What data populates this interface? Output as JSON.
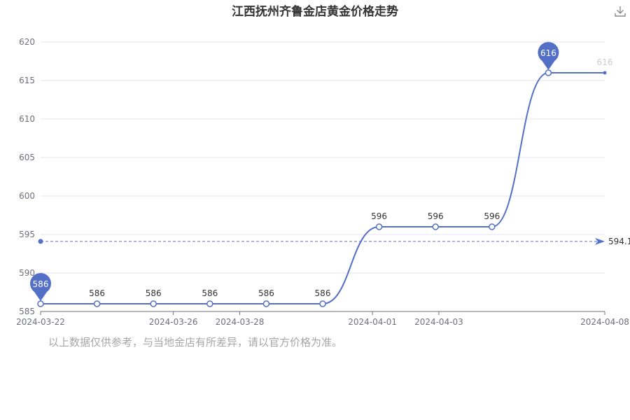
{
  "toolbar": {
    "download_icon": "download-icon"
  },
  "footnote": "以上数据仅供参考，与当地金店有所差异，请以官方价格为准。",
  "colors": {
    "series": "#5470c6",
    "grid": "#e0e6f1",
    "axis": "#6e7079",
    "label": "#333333",
    "footnote": "#a6a6a6"
  },
  "chart_data": {
    "type": "line",
    "title": "江西抚州齐鲁金店黄金价格走势",
    "xlabel": "",
    "ylabel": "",
    "ylim": [
      585,
      620
    ],
    "yticks": [
      "585",
      "590",
      "595",
      "600",
      "605",
      "610",
      "615",
      "620"
    ],
    "x_dates": [
      "2024-03-22",
      "2024-03-24",
      "2024-03-26",
      "2024-03-27",
      "2024-03-28",
      "2024-03-29",
      "2024-04-01",
      "2024-04-02",
      "2024-04-03",
      "2024-04-04",
      "2024-04-08"
    ],
    "xticks": [
      "2024-03-22",
      "2024-03-26",
      "2024-03-28",
      "2024-04-01",
      "2024-04-03",
      "2024-04-08"
    ],
    "series": [
      {
        "values": [
          586,
          586,
          586,
          586,
          586,
          586,
          596,
          596,
          596,
          616,
          616
        ]
      }
    ],
    "markline": {
      "type": "average",
      "value": 594.1,
      "label": "594.1"
    },
    "markpoints": [
      {
        "type": "min",
        "index": 0,
        "label": "586"
      },
      {
        "type": "max",
        "index": 9,
        "label": "616"
      }
    ],
    "grid": true,
    "legend": "none"
  }
}
